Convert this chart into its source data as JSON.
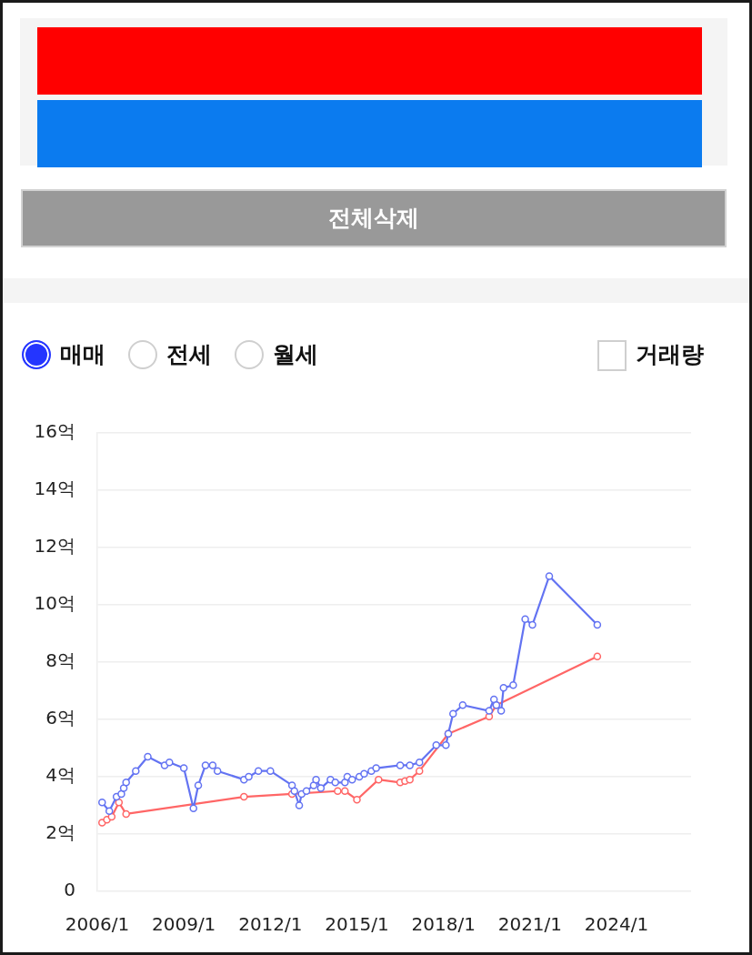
{
  "chart_data": {
    "type": "line",
    "annotations": [
      "전체삭제",
      "매매",
      "전세",
      "월세",
      "거래량"
    ],
    "xlim": [
      "2006-01",
      "2026-08"
    ],
    "xticks": [
      {
        "value": "2006-01",
        "label": "2006/1"
      },
      {
        "value": "2009-01",
        "label": "2009/1"
      },
      {
        "value": "2012-01",
        "label": "2012/1"
      },
      {
        "value": "2015-01",
        "label": "2015/1"
      },
      {
        "value": "2018-01",
        "label": "2018/1"
      },
      {
        "value": "2021-01",
        "label": "2021/1"
      },
      {
        "value": "2024-01",
        "label": "2024/1"
      }
    ],
    "ylim": [
      0,
      16
    ],
    "yticks": [
      0,
      {
        "value": 2,
        "label": "2억"
      },
      {
        "value": 4,
        "label": "4억"
      },
      {
        "value": 6,
        "label": "6억"
      },
      {
        "value": 8,
        "label": "8억"
      },
      {
        "value": 10,
        "label": "10억"
      },
      {
        "value": 12,
        "label": "12억"
      },
      {
        "value": 14,
        "label": "14억"
      },
      {
        "value": 16,
        "label": "16억"
      }
    ],
    "grid": "y",
    "marker": "circle",
    "series": [
      {
        "color": "#6373f2",
        "x": [
          "2006-03",
          "2006-06",
          "2006-09",
          "2006-11",
          "2006-12",
          "2007-01",
          "2007-05",
          "2007-10",
          "2008-05",
          "2008-07",
          "2009-01",
          "2009-05",
          "2009-07",
          "2009-10",
          "2010-01",
          "2010-03",
          "2011-02",
          "2011-04",
          "2011-08",
          "2012-01",
          "2012-10",
          "2012-11",
          "2013-01",
          "2013-02",
          "2013-04",
          "2013-07",
          "2013-08",
          "2013-10",
          "2014-02",
          "2014-04",
          "2014-08",
          "2014-09",
          "2014-11",
          "2015-02",
          "2015-04",
          "2015-07",
          "2015-09",
          "2016-07",
          "2016-11",
          "2017-03",
          "2017-10",
          "2018-02",
          "2018-03",
          "2018-05",
          "2018-09",
          "2019-08",
          "2019-10",
          "2019-11",
          "2020-01",
          "2020-02",
          "2020-06",
          "2020-11",
          "2021-02",
          "2021-09",
          "2023-05"
        ],
        "values": [
          3.1,
          2.8,
          3.3,
          3.4,
          3.6,
          3.8,
          4.2,
          4.7,
          4.4,
          4.5,
          4.3,
          2.9,
          3.7,
          4.4,
          4.4,
          4.2,
          3.9,
          4.0,
          4.2,
          4.2,
          3.7,
          3.5,
          3.0,
          3.4,
          3.5,
          3.7,
          3.9,
          3.6,
          3.9,
          3.8,
          3.8,
          4.0,
          3.9,
          4.0,
          4.1,
          4.2,
          4.3,
          4.4,
          4.4,
          4.5,
          5.1,
          5.1,
          5.5,
          6.2,
          6.5,
          6.3,
          6.7,
          6.5,
          6.3,
          7.1,
          7.2,
          9.5,
          9.3,
          11.0,
          9.3
        ]
      },
      {
        "color": "#ff6666",
        "x": [
          "2006-03",
          "2006-05",
          "2006-07",
          "2006-10",
          "2007-01",
          "2011-02",
          "2012-10",
          "2014-05",
          "2014-08",
          "2015-01",
          "2015-10",
          "2016-07",
          "2016-09",
          "2016-11",
          "2017-03",
          "2018-03",
          "2019-08",
          "2019-11",
          "2023-05"
        ],
        "values": [
          2.4,
          2.5,
          2.6,
          3.1,
          2.7,
          3.3,
          3.4,
          3.5,
          3.5,
          3.2,
          3.9,
          3.8,
          3.85,
          3.9,
          4.2,
          5.5,
          6.1,
          6.5,
          8.2
        ]
      }
    ]
  }
}
